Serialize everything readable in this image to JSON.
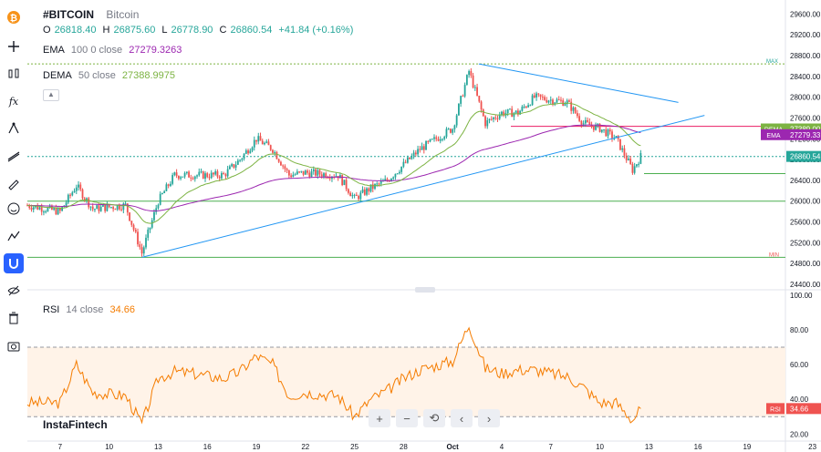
{
  "symbol": "#BITCOIN",
  "name": "Bitcoin",
  "ohlc": {
    "o_label": "O",
    "o": "26818.40",
    "h_label": "H",
    "h": "26875.60",
    "l_label": "L",
    "l": "26778.90",
    "c_label": "C",
    "c": "26860.54",
    "change": "+41.84 (+0.16%)"
  },
  "ema_legend": {
    "name": "EMA",
    "params": "100 0 close",
    "value": "27279.3263"
  },
  "dema_legend": {
    "name": "DEMA",
    "params": "50 close",
    "value": "27388.9975"
  },
  "rsi_legend": {
    "name": "RSI",
    "params": "14 close",
    "value": "34.66"
  },
  "watermark": "InstaFintech",
  "colors": {
    "up": "#26a69a",
    "down": "#ef5350",
    "ema": "#9c27b0",
    "dema": "#7cb342",
    "trend": "#2196f3",
    "rsi": "#f57c00",
    "price_tag": "#26a69a"
  },
  "icons": [
    "bitcoin-icon",
    "crosshair-icon",
    "candles-icon",
    "fx-icon",
    "node-icon",
    "trendlines-icon",
    "brush-icon",
    "emoji-icon",
    "measure-icon",
    "magnet-icon",
    "eye-off-icon",
    "trash-icon",
    "camera-icon"
  ],
  "nav_buttons": [
    "+",
    "−",
    "⟲",
    "‹",
    "›"
  ],
  "chart_data": [
    {
      "type": "candlestick",
      "title": "#BITCOIN",
      "x_tick_labels": [
        "7",
        "10",
        "13",
        "16",
        "19",
        "22",
        "25",
        "28",
        "Oct",
        "4",
        "7",
        "10",
        "13",
        "16",
        "19",
        "23"
      ],
      "y_tick_labels": [
        "24400.00",
        "24800.00",
        "25200.00",
        "25600.00",
        "26000.00",
        "26400.00",
        "26800.00",
        "27200.00",
        "27600.00",
        "28000.00",
        "28400.00",
        "28800.00",
        "29200.00",
        "29600.00"
      ],
      "ylim": [
        24400,
        29800
      ],
      "price_markers": {
        "max": "MAX",
        "min": "MIN",
        "max_value": 28640,
        "min_value": 24920
      },
      "horizontal_levels": [
        28640,
        27440,
        26860,
        26530,
        26000,
        24920
      ],
      "price_tags": [
        {
          "label": "DEMA",
          "value": "27389.00",
          "color": "#7cb342"
        },
        {
          "label": "EMA",
          "value": "27279.33",
          "color": "#9c27b0"
        },
        {
          "label": "",
          "value": "26860.54",
          "color": "#26a69a"
        }
      ],
      "series_close_anchors": [
        {
          "x": "Sep 5",
          "y": 25920
        },
        {
          "x": "Sep 7",
          "y": 25800
        },
        {
          "x": "Sep 8",
          "y": 26300
        },
        {
          "x": "Sep 9",
          "y": 25850
        },
        {
          "x": "Sep 11",
          "y": 25920
        },
        {
          "x": "Sep 12",
          "y": 25000
        },
        {
          "x": "Sep 13",
          "y": 26000
        },
        {
          "x": "Sep 14",
          "y": 26500
        },
        {
          "x": "Sep 15",
          "y": 26500
        },
        {
          "x": "Sep 17",
          "y": 26500
        },
        {
          "x": "Sep 18",
          "y": 26800
        },
        {
          "x": "Sep 19",
          "y": 27200
        },
        {
          "x": "Sep 20",
          "y": 27000
        },
        {
          "x": "Sep 21",
          "y": 26500
        },
        {
          "x": "Sep 22",
          "y": 26550
        },
        {
          "x": "Sep 24",
          "y": 26500
        },
        {
          "x": "Sep 25",
          "y": 26050
        },
        {
          "x": "Sep 26",
          "y": 26250
        },
        {
          "x": "Sep 27",
          "y": 26400
        },
        {
          "x": "Sep 28",
          "y": 26700
        },
        {
          "x": "Sep 29",
          "y": 27000
        },
        {
          "x": "Oct 1",
          "y": 27400
        },
        {
          "x": "Oct 2",
          "y": 28500
        },
        {
          "x": "Oct 3",
          "y": 27500
        },
        {
          "x": "Oct 4",
          "y": 27700
        },
        {
          "x": "Oct 5",
          "y": 27700
        },
        {
          "x": "Oct 6",
          "y": 28000
        },
        {
          "x": "Oct 8",
          "y": 27900
        },
        {
          "x": "Oct 9",
          "y": 27500
        },
        {
          "x": "Oct 10",
          "y": 27400
        },
        {
          "x": "Oct 11",
          "y": 27200
        },
        {
          "x": "Oct 12",
          "y": 26600
        },
        {
          "x": "Oct 12.5",
          "y": 26860
        }
      ]
    },
    {
      "type": "line",
      "title": "RSI 14 close",
      "y_tick_labels": [
        "20.00",
        "40.00",
        "60.00",
        "80.00",
        "100.00"
      ],
      "ylim": [
        17,
        102
      ],
      "bands": [
        70,
        30
      ],
      "tag": {
        "label": "RSI",
        "value": "34.66"
      },
      "x": [
        "Sep 5",
        "Sep 7",
        "Sep 8",
        "Sep 9",
        "Sep 11",
        "Sep 12",
        "Sep 13",
        "Sep 14",
        "Sep 15",
        "Sep 17",
        "Sep 18",
        "Sep 19",
        "Sep 20",
        "Sep 21",
        "Sep 22",
        "Sep 24",
        "Sep 25",
        "Sep 26",
        "Sep 27",
        "Sep 28",
        "Sep 29",
        "Oct 1",
        "Oct 2",
        "Oct 3",
        "Oct 4",
        "Oct 5",
        "Oct 6",
        "Oct 8",
        "Oct 9",
        "Oct 10",
        "Oct 11",
        "Oct 12",
        "Oct 12.5"
      ],
      "values": [
        38,
        38,
        60,
        44,
        42,
        26,
        52,
        56,
        55,
        52,
        56,
        65,
        60,
        42,
        44,
        42,
        30,
        40,
        45,
        52,
        57,
        62,
        83,
        58,
        55,
        57,
        57,
        53,
        47,
        38,
        38,
        28,
        34.66
      ]
    }
  ]
}
